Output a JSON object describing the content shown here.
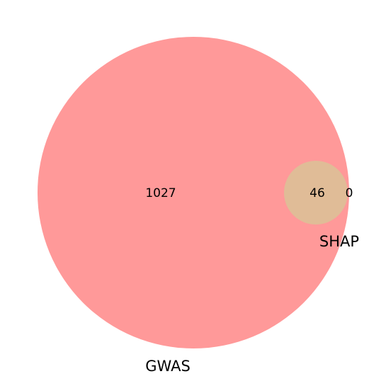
{
  "venn": {
    "sets": [
      {
        "name": "GWAS",
        "color": "#ff9999"
      },
      {
        "name": "SHAP",
        "color": "#e0bc97"
      }
    ],
    "counts": {
      "gwas_only": "1027",
      "both": "46",
      "shap_only": "0"
    }
  }
}
